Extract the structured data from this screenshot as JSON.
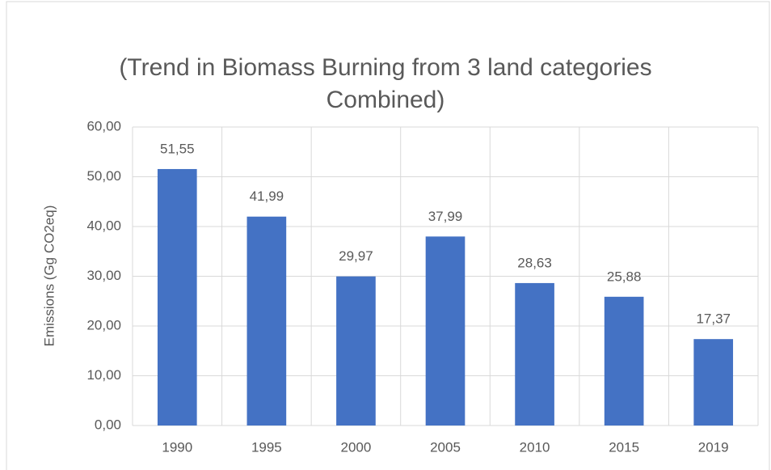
{
  "chart_data": {
    "type": "bar",
    "title": "(Trend in Biomass Burning from 3 land categories Combined)",
    "y_label": "Emissions (Gg CO2eq)",
    "categories": [
      "1990",
      "1995",
      "2000",
      "2005",
      "2010",
      "2015",
      "2019"
    ],
    "values": [
      51.55,
      41.99,
      29.97,
      37.99,
      28.63,
      25.88,
      17.37
    ],
    "value_labels": [
      "51,55",
      "41,99",
      "29,97",
      "37,99",
      "28,63",
      "25,88",
      "17,37"
    ],
    "color": "#4472c4",
    "ylim": [
      0,
      60
    ],
    "yticks": [
      {
        "value": 0,
        "label": "0,00"
      },
      {
        "value": 10,
        "label": "10,00"
      },
      {
        "value": 20,
        "label": "20,00"
      },
      {
        "value": 30,
        "label": "30,00"
      },
      {
        "value": 40,
        "label": "40,00"
      },
      {
        "value": 50,
        "label": "50,00"
      },
      {
        "value": 60,
        "label": "60,00"
      }
    ],
    "grid": true
  }
}
